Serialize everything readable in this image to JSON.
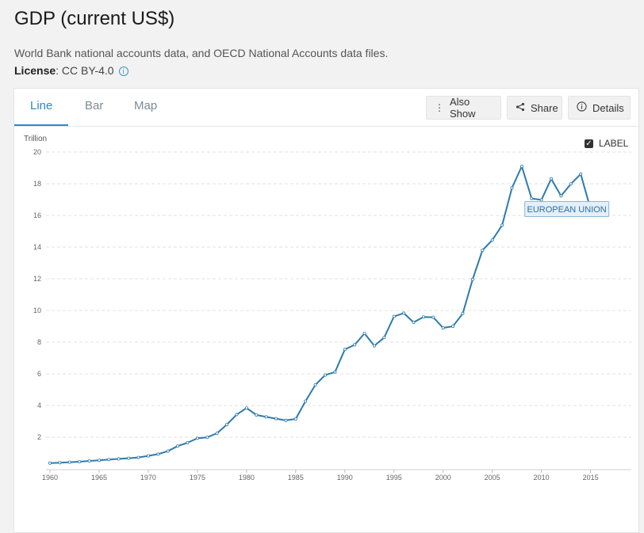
{
  "header": {
    "title": "GDP (current US$)",
    "source": "World Bank national accounts data, and OECD National Accounts data files.",
    "license_label": "License",
    "license_value": ": CC BY-4.0",
    "info_icon": "info-icon"
  },
  "tabs": [
    {
      "label": "Line",
      "active": true
    },
    {
      "label": "Bar",
      "active": false
    },
    {
      "label": "Map",
      "active": false
    }
  ],
  "toolbar": {
    "also_show": "Also Show",
    "share": "Share",
    "details": "Details",
    "icons": {
      "also_show": "vertical-dots-icon",
      "share": "share-icon",
      "details": "info-circle-icon"
    }
  },
  "label_toggle": {
    "label": "LABEL",
    "checked": true
  },
  "colors": {
    "accent": "#2f87c9",
    "series": "#2e7bab",
    "grid": "#e2e2e2"
  },
  "chart_data": {
    "type": "line",
    "title": "",
    "xlabel": "",
    "ylabel": "Trillion",
    "xlim": [
      1960,
      2016
    ],
    "ylim": [
      0,
      20
    ],
    "x_ticks": [
      1960,
      1965,
      1970,
      1975,
      1980,
      1985,
      1990,
      1995,
      2000,
      2005,
      2010,
      2015
    ],
    "x_tick_labels": [
      "1960",
      "1965",
      "1970",
      "1975",
      "1980",
      "1985",
      "1990",
      "1995",
      "2000",
      "2005",
      "2010",
      "2015"
    ],
    "y_ticks": [
      2,
      4,
      6,
      8,
      10,
      12,
      14,
      16,
      18,
      20
    ],
    "y_tick_labels": [
      "2",
      "4",
      "6",
      "8",
      "10",
      "12",
      "14",
      "16",
      "18",
      "20"
    ],
    "grid": true,
    "series": [
      {
        "name": "EUROPEAN UNION",
        "x": [
          1960,
          1961,
          1962,
          1963,
          1964,
          1965,
          1966,
          1967,
          1968,
          1969,
          1970,
          1971,
          1972,
          1973,
          1974,
          1975,
          1976,
          1977,
          1978,
          1979,
          1980,
          1981,
          1982,
          1983,
          1984,
          1985,
          1986,
          1987,
          1988,
          1989,
          1990,
          1991,
          1992,
          1993,
          1994,
          1995,
          1996,
          1997,
          1998,
          1999,
          2000,
          2001,
          2002,
          2003,
          2004,
          2005,
          2006,
          2007,
          2008,
          2009,
          2010,
          2011,
          2012,
          2013,
          2014,
          2015,
          2016
        ],
        "y": [
          0.36,
          0.39,
          0.42,
          0.45,
          0.5,
          0.54,
          0.59,
          0.63,
          0.67,
          0.72,
          0.82,
          0.93,
          1.12,
          1.44,
          1.65,
          1.93,
          1.99,
          2.25,
          2.8,
          3.43,
          3.84,
          3.4,
          3.28,
          3.17,
          3.06,
          3.15,
          4.27,
          5.3,
          5.92,
          6.11,
          7.54,
          7.83,
          8.55,
          7.77,
          8.29,
          9.62,
          9.83,
          9.25,
          9.59,
          9.57,
          8.9,
          9.0,
          9.81,
          11.96,
          13.8,
          14.44,
          15.38,
          17.73,
          19.1,
          17.07,
          16.98,
          18.31,
          17.23,
          17.99,
          18.61,
          16.41,
          16.48
        ]
      }
    ],
    "annotations": [
      {
        "text": "EUROPEAN UNION",
        "at_x": 2010,
        "at_y": 16.4
      }
    ]
  }
}
